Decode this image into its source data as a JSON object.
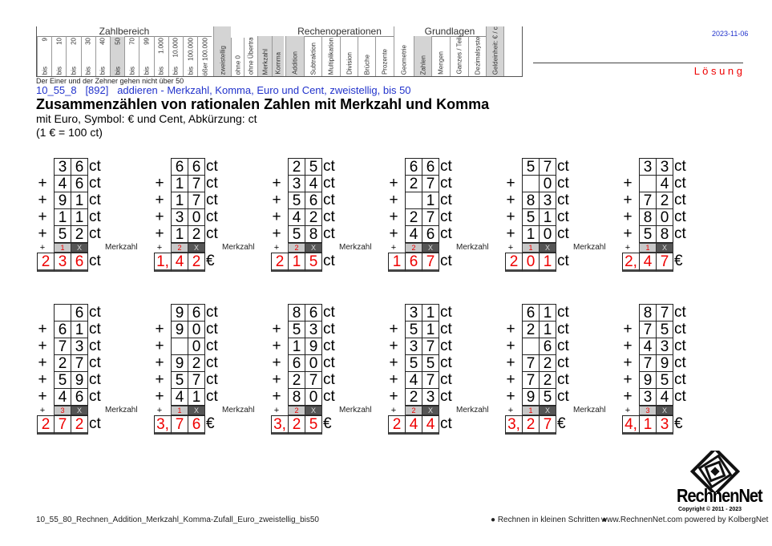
{
  "header": {
    "groups": {
      "zahlbereich": "Zahlbereich",
      "rechenoperationen": "Rechenoperationen",
      "grundlagen": "Grundlagen"
    },
    "zahlbereich": [
      {
        "top": "9",
        "bottom": "bis"
      },
      {
        "top": "10",
        "bottom": "bis"
      },
      {
        "top": "20",
        "bottom": "bis"
      },
      {
        "top": "30",
        "bottom": "bis"
      },
      {
        "top": "40",
        "bottom": "bis"
      },
      {
        "top": "50",
        "bottom": "bis",
        "active": true
      },
      {
        "top": "70",
        "bottom": "bis"
      },
      {
        "top": "99",
        "bottom": "bis"
      },
      {
        "top": "1.000",
        "bottom": "bis"
      },
      {
        "top": "10.000",
        "bottom": "bis"
      },
      {
        "top": "100.000",
        "bottom": "bis"
      },
      {
        "top": "größer 100.000",
        "bottom": ""
      }
    ],
    "features": [
      {
        "label": "zweistellig",
        "active": true
      },
      {
        "label": "ohne 0"
      },
      {
        "label": "ohne Übertrag"
      },
      {
        "label": "Merkzahl",
        "active": true
      },
      {
        "label": "Komma",
        "active": true
      }
    ],
    "operations": [
      {
        "label": "Addition",
        "active": true
      },
      {
        "label": "Subtraktion"
      },
      {
        "label": "Multiplikation"
      },
      {
        "label": "Division"
      },
      {
        "label": "Brüche"
      },
      {
        "label": "Prozente"
      }
    ],
    "geometrie": "Geometrie",
    "grundlagen": [
      {
        "label": "Zahlen",
        "active": true
      },
      {
        "label": "Mengen"
      },
      {
        "label": "Ganzes / Teile"
      },
      {
        "label": "Dezimalsystem"
      }
    ],
    "geld": {
      "label": "Geldeinheit: € / ct",
      "active": true
    },
    "note": "Der Einer und der Zehner gehen nicht über 50",
    "date": "2023-11-06",
    "solution": "L ö s u n g"
  },
  "title": {
    "code_line": "10_55_8   [892]   addieren - Merkzahl, Komma, Euro und Cent, zweistellig, bis 50",
    "heading": "Zusammenzählen von rationalen Zahlen mit Merkzahl und Komma",
    "subtitle": "mit Euro, Symbol: € und Cent, Abkürzung: ct",
    "conversion": "(1 € = 100 ct)"
  },
  "labels": {
    "plus": "+",
    "merkzahl": "Merkzahl",
    "x": "X"
  },
  "rows": [
    [
      {
        "ops": [
          [
            "3",
            "6"
          ],
          [
            "4",
            "6"
          ],
          [
            "9",
            "1"
          ],
          [
            "1",
            "1"
          ],
          [
            "5",
            "2"
          ]
        ],
        "unit": "ct",
        "carry": "1",
        "result": [
          "2",
          "3",
          "6"
        ],
        "result_unit": "ct"
      },
      {
        "ops": [
          [
            "6",
            "6"
          ],
          [
            "1",
            "7"
          ],
          [
            "1",
            "7"
          ],
          [
            "3",
            "0"
          ],
          [
            "1",
            "2"
          ]
        ],
        "unit": "ct",
        "carry": "2",
        "result": [
          "1,",
          "4",
          "2"
        ],
        "result_unit": "€"
      },
      {
        "ops": [
          [
            "2",
            "5"
          ],
          [
            "3",
            "4"
          ],
          [
            "5",
            "6"
          ],
          [
            "4",
            "2"
          ],
          [
            "5",
            "8"
          ]
        ],
        "unit": "ct",
        "carry": "2",
        "result": [
          "2",
          "1",
          "5"
        ],
        "result_unit": "ct"
      },
      {
        "ops": [
          [
            "6",
            "6"
          ],
          [
            "2",
            "7"
          ],
          [
            "",
            "1"
          ],
          [
            "2",
            "7"
          ],
          [
            "4",
            "6"
          ]
        ],
        "unit": "ct",
        "carry": "2",
        "result": [
          "1",
          "6",
          "7"
        ],
        "result_unit": "ct"
      },
      {
        "ops": [
          [
            "5",
            "7"
          ],
          [
            "",
            "0"
          ],
          [
            "8",
            "3"
          ],
          [
            "5",
            "1"
          ],
          [
            "1",
            "0"
          ]
        ],
        "unit": "ct",
        "carry": "1",
        "result": [
          "2",
          "0",
          "1"
        ],
        "result_unit": "ct"
      },
      {
        "ops": [
          [
            "3",
            "3"
          ],
          [
            "",
            "4"
          ],
          [
            "7",
            "2"
          ],
          [
            "8",
            "0"
          ],
          [
            "5",
            "8"
          ]
        ],
        "unit": "ct",
        "carry": "1",
        "result": [
          "2,",
          "4",
          "7"
        ],
        "result_unit": "€",
        "no_label": true
      }
    ],
    [
      {
        "ops": [
          [
            "",
            "6"
          ],
          [
            "6",
            "1"
          ],
          [
            "7",
            "3"
          ],
          [
            "2",
            "7"
          ],
          [
            "5",
            "9"
          ],
          [
            "4",
            "6"
          ]
        ],
        "unit": "ct",
        "carry": "3",
        "result": [
          "2",
          "7",
          "2"
        ],
        "result_unit": "ct"
      },
      {
        "ops": [
          [
            "9",
            "6"
          ],
          [
            "9",
            "0"
          ],
          [
            "",
            "0"
          ],
          [
            "9",
            "2"
          ],
          [
            "5",
            "7"
          ],
          [
            "4",
            "1"
          ]
        ],
        "unit": "ct",
        "carry": "1",
        "result": [
          "3,",
          "7",
          "6"
        ],
        "result_unit": "€"
      },
      {
        "ops": [
          [
            "8",
            "6"
          ],
          [
            "5",
            "3"
          ],
          [
            "1",
            "9"
          ],
          [
            "6",
            "0"
          ],
          [
            "2",
            "7"
          ],
          [
            "8",
            "0"
          ]
        ],
        "unit": "ct",
        "carry": "2",
        "result": [
          "3,",
          "2",
          "5"
        ],
        "result_unit": "€"
      },
      {
        "ops": [
          [
            "3",
            "1"
          ],
          [
            "5",
            "1"
          ],
          [
            "3",
            "7"
          ],
          [
            "5",
            "5"
          ],
          [
            "4",
            "7"
          ],
          [
            "2",
            "3"
          ]
        ],
        "unit": "ct",
        "carry": "2",
        "result": [
          "2",
          "4",
          "4"
        ],
        "result_unit": "ct"
      },
      {
        "ops": [
          [
            "6",
            "1"
          ],
          [
            "2",
            "1"
          ],
          [
            "",
            "6"
          ],
          [
            "7",
            "2"
          ],
          [
            "7",
            "2"
          ],
          [
            "9",
            "5"
          ]
        ],
        "unit": "ct",
        "carry": "1",
        "result": [
          "3,",
          "2",
          "7"
        ],
        "result_unit": "€"
      },
      {
        "ops": [
          [
            "8",
            "7"
          ],
          [
            "7",
            "5"
          ],
          [
            "4",
            "3"
          ],
          [
            "7",
            "9"
          ],
          [
            "9",
            "5"
          ],
          [
            "3",
            "4"
          ]
        ],
        "unit": "ct",
        "carry": "3",
        "result": [
          "4,",
          "1",
          "3"
        ],
        "result_unit": "€",
        "no_label": true
      }
    ]
  ],
  "footer": {
    "filename": "10_55_80_Rechnen_Addition_Merkzahl_Komma-Zufall_Euro_zweistellig_bis50",
    "slogan": "● Rechnen in kleinen Schritten ●",
    "website": "www.RechnenNet.com powered by KolbergNet",
    "logo_text": "RechnenNet",
    "copyright": "Copyright © 2011 - 2023"
  }
}
